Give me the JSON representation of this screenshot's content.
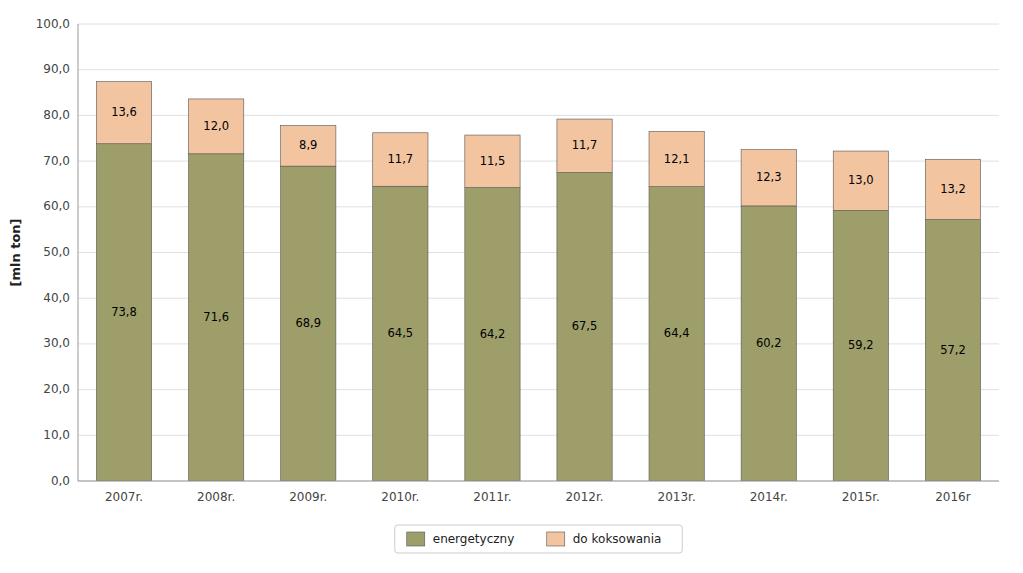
{
  "chart_data": {
    "type": "bar",
    "stacked": true,
    "ylabel": "[mln ton]",
    "categories": [
      "2007r.",
      "2008r.",
      "2009r.",
      "2010r.",
      "2011r.",
      "2012r.",
      "2013r.",
      "2014r.",
      "2015r.",
      "2016r"
    ],
    "series": [
      {
        "name": "energetyczny",
        "color": "#9e9e6a",
        "values": [
          73.8,
          71.6,
          68.9,
          64.5,
          64.2,
          67.5,
          64.4,
          60.2,
          59.2,
          57.2
        ],
        "value_labels": [
          "73,8",
          "71,6",
          "68,9",
          "64,5",
          "64,2",
          "67,5",
          "64,4",
          "60,2",
          "59,2",
          "57,2"
        ]
      },
      {
        "name": "do koksowania",
        "color": "#f2c4a0",
        "values": [
          13.6,
          12.0,
          8.9,
          11.7,
          11.5,
          11.7,
          12.1,
          12.3,
          13.0,
          13.2
        ],
        "value_labels": [
          "13,6",
          "12,0",
          "8,9",
          "11,7",
          "11,5",
          "11,7",
          "12,1",
          "12,3",
          "13,0",
          "13,2"
        ]
      }
    ],
    "ylim": [
      0,
      100
    ],
    "yticks": [
      {
        "value": 0,
        "label": "0,0"
      },
      {
        "value": 10,
        "label": "10,0"
      },
      {
        "value": 20,
        "label": "20,0"
      },
      {
        "value": 30,
        "label": "30,0"
      },
      {
        "value": 40,
        "label": "40,0"
      },
      {
        "value": 50,
        "label": "50,0"
      },
      {
        "value": 60,
        "label": "60,0"
      },
      {
        "value": 70,
        "label": "70,0"
      },
      {
        "value": 80,
        "label": "80,0"
      },
      {
        "value": 90,
        "label": "90,0"
      },
      {
        "value": 100,
        "label": "100,0"
      }
    ],
    "grid": true,
    "data_labels": true,
    "legend": "bottom"
  }
}
